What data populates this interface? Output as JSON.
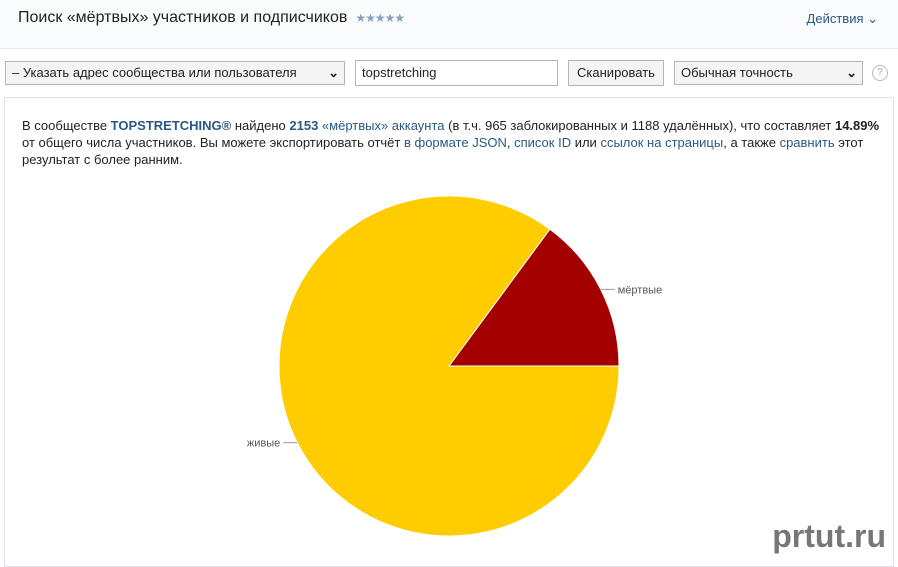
{
  "header": {
    "title": "Поиск «мёртвых» участников и подписчиков",
    "stars": "★★★★★",
    "actions": "Действия ⌄"
  },
  "toolbar": {
    "source_select": "– Указать адрес сообщества или пользователя",
    "query_value": "topstretching",
    "scan_button": "Сканировать",
    "accuracy_select": "Обычная точность",
    "help": "?"
  },
  "summary": {
    "t1": "В сообществе ",
    "community": "TOPSTRETCHING®",
    "t2": " найдено ",
    "count": "2153",
    "t3": " ",
    "dead_link": "«мёртвых» аккаунта",
    "t4": " (в т.ч. 965 заблокированных и 1188 удалённых), что составляет ",
    "percent": "14.89%",
    "t5": " от общего числа участников. Вы можете экспортировать отчёт ",
    "json_link": "в формате JSON",
    "t6": ", ",
    "id_link": "список ID",
    "t7": " или ",
    "links_link": "ссылок на страницы",
    "t8": ", а также ",
    "compare_link": "сравнить",
    "t9": " этот результат с более ранним."
  },
  "chart_data": {
    "type": "pie",
    "slices": [
      {
        "label": "мёртвые",
        "value": 14.89,
        "color": "#a50000"
      },
      {
        "label": "живые",
        "value": 85.11,
        "color": "#ffcc00"
      }
    ]
  },
  "watermark": "prtut.ru"
}
